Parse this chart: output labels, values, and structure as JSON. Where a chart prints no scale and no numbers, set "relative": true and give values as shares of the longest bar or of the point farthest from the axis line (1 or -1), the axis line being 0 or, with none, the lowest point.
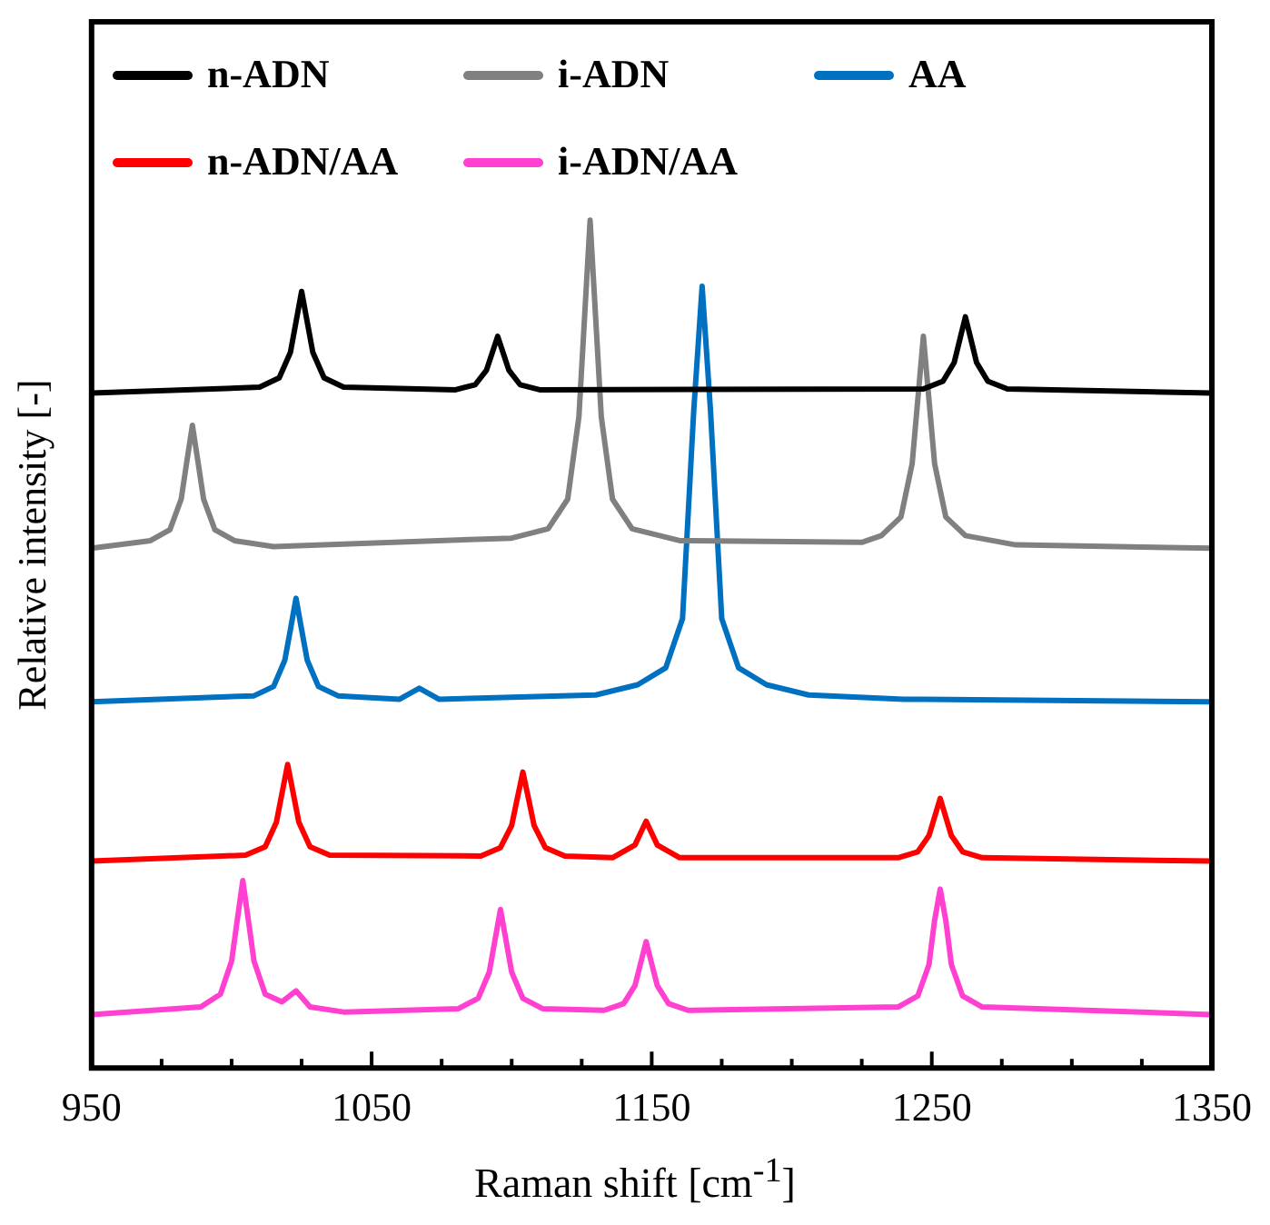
{
  "chart_data": {
    "type": "line",
    "xlabel": "Raman shift [cm$^{-1}$]",
    "ylabel": "Relative intensity [-]",
    "relative": true,
    "legend": "top",
    "grid": false,
    "marker": "none",
    "line_style": "solid",
    "xlim": [
      950,
      1350
    ],
    "xticks": [
      950,
      {
        "value": 975,
        "label": null
      },
      {
        "value": 1000,
        "label": null
      },
      {
        "value": 1025,
        "label": null
      },
      1050,
      {
        "value": 1075,
        "label": null
      },
      {
        "value": 1100,
        "label": null
      },
      {
        "value": 1125,
        "label": null
      },
      1150,
      {
        "value": 1175,
        "label": null
      },
      {
        "value": 1200,
        "label": null
      },
      {
        "value": 1225,
        "label": null
      },
      1250,
      {
        "value": 1275,
        "label": null
      },
      {
        "value": 1300,
        "label": null
      },
      {
        "value": 1325,
        "label": null
      },
      1350
    ],
    "series": [
      {
        "name": "n-ADN",
        "color": "#000000",
        "x": [
          950,
          1010,
          1017,
          1021,
          1023,
          1025,
          1027,
          1029,
          1033,
          1040,
          1080,
          1087,
          1091,
          1093,
          1095,
          1097,
          1099,
          1103,
          1110,
          1247,
          1254,
          1258,
          1260,
          1262,
          1264,
          1266,
          1270,
          1277,
          1350
        ],
        "values": [
          0.796,
          0.803,
          0.814,
          0.844,
          0.88,
          0.916,
          0.88,
          0.844,
          0.814,
          0.803,
          0.8,
          0.806,
          0.823,
          0.843,
          0.863,
          0.843,
          0.823,
          0.806,
          0.8,
          0.801,
          0.81,
          0.832,
          0.859,
          0.886,
          0.859,
          0.832,
          0.81,
          0.801,
          0.796
        ]
      },
      {
        "name": "i-ADN",
        "color": "#808080",
        "x": [
          950,
          971,
          978,
          982,
          984,
          986,
          988,
          990,
          994,
          1001,
          1015,
          1100,
          1113,
          1120,
          1124,
          1126,
          1128,
          1130,
          1132,
          1136,
          1143,
          1160,
          1225,
          1232,
          1239,
          1243,
          1245,
          1247,
          1249,
          1251,
          1255,
          1262,
          1280,
          1350
        ],
        "values": [
          0.613,
          0.622,
          0.635,
          0.671,
          0.715,
          0.758,
          0.715,
          0.671,
          0.635,
          0.622,
          0.615,
          0.625,
          0.636,
          0.671,
          0.768,
          0.884,
          1.0,
          0.884,
          0.768,
          0.671,
          0.636,
          0.622,
          0.62,
          0.628,
          0.65,
          0.713,
          0.788,
          0.863,
          0.788,
          0.713,
          0.65,
          0.628,
          0.617,
          0.613
        ]
      },
      {
        "name": "AA",
        "color": "#0070c0",
        "x": [
          950,
          1008,
          1015,
          1019,
          1021,
          1023,
          1025,
          1027,
          1031,
          1038,
          1060,
          1067,
          1074,
          1130,
          1145,
          1155,
          1161,
          1165,
          1168,
          1171,
          1175,
          1181,
          1191,
          1206,
          1240,
          1350
        ],
        "values": [
          0.432,
          0.439,
          0.45,
          0.481,
          0.517,
          0.554,
          0.517,
          0.481,
          0.45,
          0.439,
          0.435,
          0.448,
          0.435,
          0.44,
          0.452,
          0.472,
          0.53,
          0.775,
          0.922,
          0.775,
          0.53,
          0.472,
          0.452,
          0.44,
          0.435,
          0.432
        ]
      },
      {
        "name": "n-ADN/AA",
        "color": "#ff0000",
        "x": [
          950,
          1005,
          1012,
          1016,
          1018,
          1020,
          1022,
          1024,
          1028,
          1035,
          1089,
          1096,
          1100,
          1102,
          1104,
          1106,
          1108,
          1112,
          1119,
          1136,
          1144,
          1148,
          1152,
          1160,
          1238,
          1245,
          1249,
          1251,
          1253,
          1255,
          1257,
          1261,
          1268,
          1350
        ],
        "values": [
          0.244,
          0.251,
          0.261,
          0.29,
          0.324,
          0.358,
          0.324,
          0.29,
          0.261,
          0.251,
          0.25,
          0.26,
          0.286,
          0.318,
          0.349,
          0.318,
          0.286,
          0.26,
          0.25,
          0.248,
          0.263,
          0.291,
          0.263,
          0.248,
          0.248,
          0.255,
          0.274,
          0.296,
          0.318,
          0.296,
          0.274,
          0.255,
          0.248,
          0.244
        ]
      },
      {
        "name": "i-ADN/AA",
        "color": "#ff40d0",
        "x": [
          950,
          989,
          996,
          1000,
          1002,
          1004,
          1006,
          1008,
          1012,
          1018,
          1023,
          1028,
          1040,
          1081,
          1088,
          1092,
          1094,
          1096,
          1098,
          1100,
          1104,
          1111,
          1133,
          1140,
          1144,
          1146,
          1148,
          1150,
          1152,
          1156,
          1163,
          1238,
          1245,
          1249,
          1251,
          1253,
          1255,
          1257,
          1261,
          1268,
          1350
        ],
        "values": [
          0.063,
          0.072,
          0.087,
          0.126,
          0.174,
          0.221,
          0.174,
          0.126,
          0.087,
          0.078,
          0.091,
          0.072,
          0.066,
          0.07,
          0.082,
          0.113,
          0.15,
          0.187,
          0.15,
          0.113,
          0.082,
          0.07,
          0.068,
          0.076,
          0.097,
          0.123,
          0.149,
          0.123,
          0.097,
          0.076,
          0.068,
          0.072,
          0.085,
          0.122,
          0.174,
          0.211,
          0.174,
          0.122,
          0.085,
          0.072,
          0.063
        ]
      }
    ]
  }
}
